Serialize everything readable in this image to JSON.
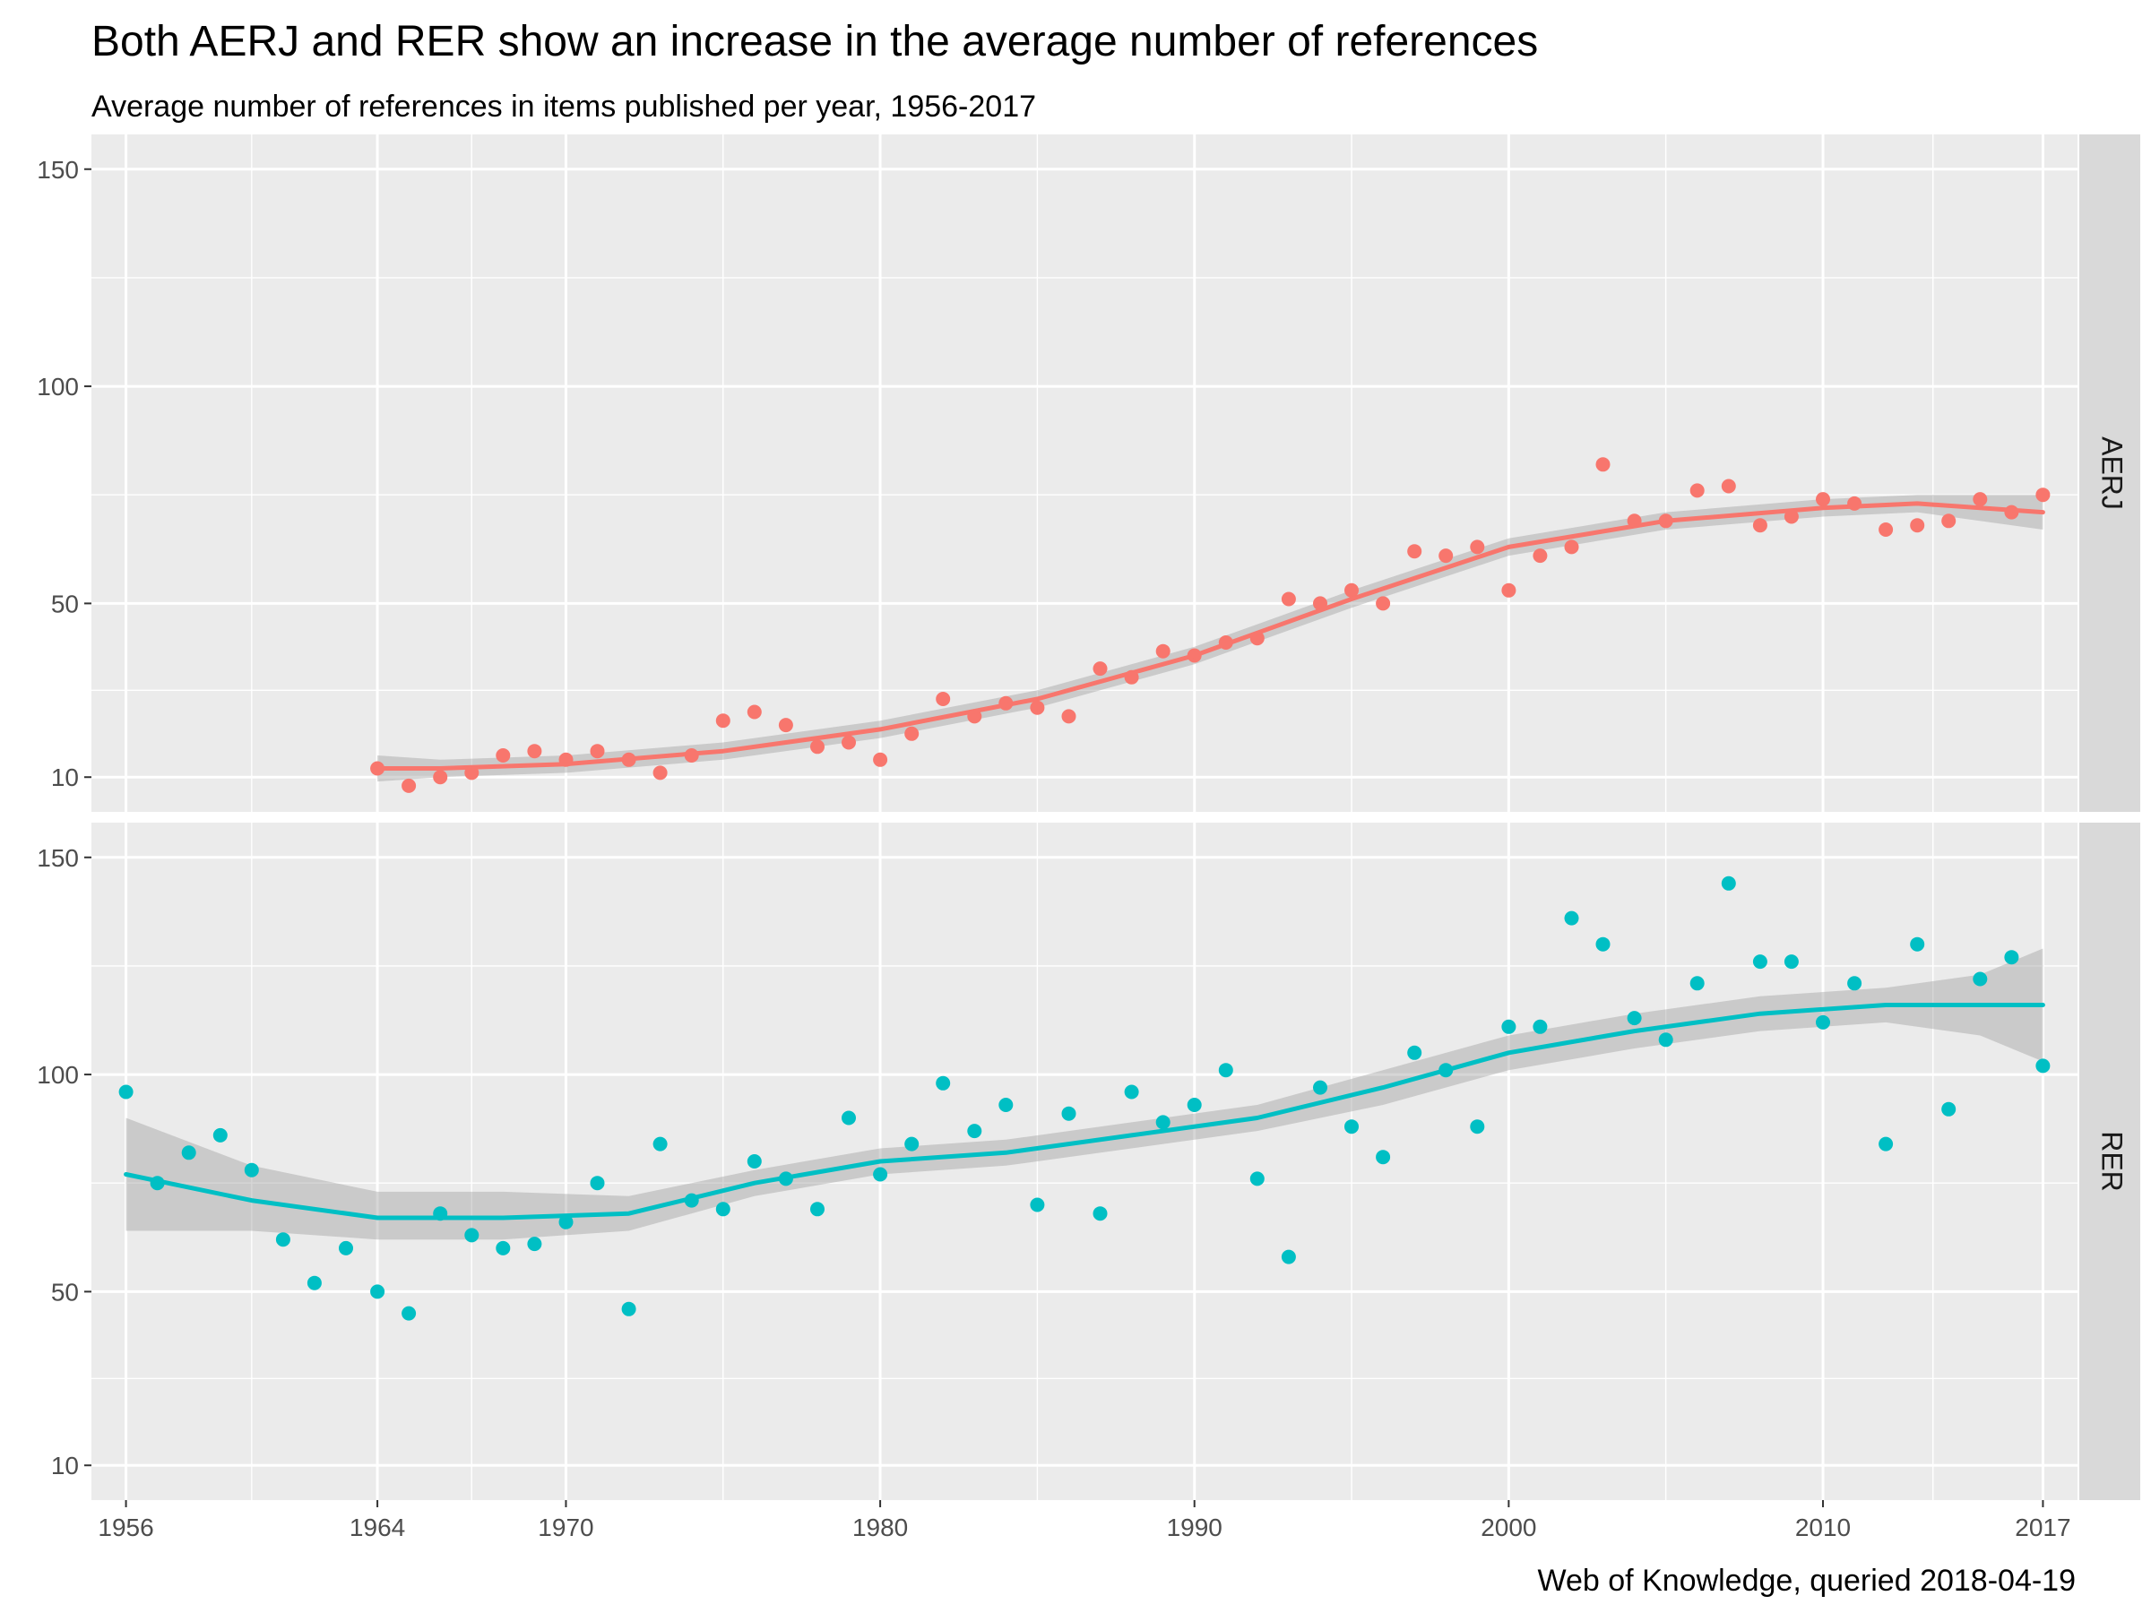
{
  "chart_data": {
    "type": "scatter",
    "title": "Both AERJ and RER show an increase in the average number of references",
    "subtitle": "Average number of references in items published per year, 1956-2017",
    "caption": "Web of Knowledge, queried 2018-04-19",
    "xlabel": "",
    "ylabel": "",
    "x_ticks": [
      1956,
      1964,
      1970,
      1980,
      1990,
      2000,
      2010,
      2017
    ],
    "y_ticks": [
      10,
      50,
      100,
      150
    ],
    "xlim": [
      1954.9,
      2018.1
    ],
    "ylim": [
      2,
      158
    ],
    "grid": true,
    "legend": "none",
    "facets": [
      {
        "label": "AERJ",
        "color": "#F8766D",
        "points": [
          [
            1964,
            12
          ],
          [
            1965,
            8
          ],
          [
            1966,
            10
          ],
          [
            1967,
            11
          ],
          [
            1968,
            15
          ],
          [
            1969,
            16
          ],
          [
            1970,
            14
          ],
          [
            1971,
            16
          ],
          [
            1972,
            14
          ],
          [
            1973,
            11
          ],
          [
            1974,
            15
          ],
          [
            1975,
            23
          ],
          [
            1976,
            25
          ],
          [
            1977,
            22
          ],
          [
            1978,
            17
          ],
          [
            1979,
            18
          ],
          [
            1980,
            14
          ],
          [
            1981,
            20
          ],
          [
            1982,
            28
          ],
          [
            1983,
            24
          ],
          [
            1984,
            27
          ],
          [
            1985,
            26
          ],
          [
            1986,
            24
          ],
          [
            1987,
            35
          ],
          [
            1988,
            33
          ],
          [
            1989,
            39
          ],
          [
            1990,
            38
          ],
          [
            1991,
            41
          ],
          [
            1992,
            42
          ],
          [
            1993,
            51
          ],
          [
            1994,
            50
          ],
          [
            1995,
            53
          ],
          [
            1996,
            50
          ],
          [
            1997,
            62
          ],
          [
            1998,
            61
          ],
          [
            1999,
            63
          ],
          [
            2000,
            53
          ],
          [
            2001,
            61
          ],
          [
            2002,
            63
          ],
          [
            2003,
            82
          ],
          [
            2004,
            69
          ],
          [
            2005,
            69
          ],
          [
            2006,
            76
          ],
          [
            2007,
            77
          ],
          [
            2008,
            68
          ],
          [
            2009,
            70
          ],
          [
            2010,
            74
          ],
          [
            2011,
            73
          ],
          [
            2012,
            67
          ],
          [
            2013,
            68
          ],
          [
            2014,
            69
          ],
          [
            2015,
            74
          ],
          [
            2016,
            71
          ],
          [
            2017,
            75
          ]
        ],
        "smooth": [
          [
            1964,
            12
          ],
          [
            1966,
            12
          ],
          [
            1970,
            13
          ],
          [
            1975,
            16
          ],
          [
            1980,
            21
          ],
          [
            1985,
            28
          ],
          [
            1990,
            38
          ],
          [
            1995,
            51
          ],
          [
            2000,
            63
          ],
          [
            2005,
            69
          ],
          [
            2010,
            72
          ],
          [
            2013,
            73
          ],
          [
            2017,
            71
          ]
        ],
        "band_lower": [
          [
            1964,
            9
          ],
          [
            1966,
            10
          ],
          [
            1970,
            11
          ],
          [
            1975,
            14
          ],
          [
            1980,
            19
          ],
          [
            1985,
            26
          ],
          [
            1990,
            36
          ],
          [
            1995,
            49
          ],
          [
            2000,
            61
          ],
          [
            2005,
            67
          ],
          [
            2010,
            70
          ],
          [
            2013,
            71
          ],
          [
            2017,
            67
          ]
        ],
        "band_upper": [
          [
            1964,
            15
          ],
          [
            1966,
            14
          ],
          [
            1970,
            15
          ],
          [
            1975,
            18
          ],
          [
            1980,
            23
          ],
          [
            1985,
            30
          ],
          [
            1990,
            40
          ],
          [
            1995,
            53
          ],
          [
            2000,
            65
          ],
          [
            2005,
            71
          ],
          [
            2010,
            74
          ],
          [
            2013,
            75
          ],
          [
            2017,
            75
          ]
        ]
      },
      {
        "label": "RER",
        "color": "#00BFC4",
        "points": [
          [
            1956,
            96
          ],
          [
            1957,
            75
          ],
          [
            1958,
            82
          ],
          [
            1959,
            86
          ],
          [
            1960,
            78
          ],
          [
            1961,
            62
          ],
          [
            1962,
            52
          ],
          [
            1963,
            60
          ],
          [
            1964,
            50
          ],
          [
            1965,
            45
          ],
          [
            1966,
            68
          ],
          [
            1967,
            63
          ],
          [
            1968,
            60
          ],
          [
            1969,
            61
          ],
          [
            1970,
            66
          ],
          [
            1971,
            75
          ],
          [
            1972,
            46
          ],
          [
            1973,
            84
          ],
          [
            1974,
            71
          ],
          [
            1975,
            69
          ],
          [
            1976,
            80
          ],
          [
            1977,
            76
          ],
          [
            1978,
            69
          ],
          [
            1979,
            90
          ],
          [
            1980,
            77
          ],
          [
            1981,
            84
          ],
          [
            1982,
            98
          ],
          [
            1983,
            87
          ],
          [
            1984,
            93
          ],
          [
            1985,
            70
          ],
          [
            1986,
            91
          ],
          [
            1987,
            68
          ],
          [
            1988,
            96
          ],
          [
            1989,
            89
          ],
          [
            1990,
            93
          ],
          [
            1991,
            101
          ],
          [
            1992,
            76
          ],
          [
            1993,
            58
          ],
          [
            1994,
            97
          ],
          [
            1995,
            88
          ],
          [
            1996,
            81
          ],
          [
            1997,
            105
          ],
          [
            1998,
            101
          ],
          [
            1999,
            88
          ],
          [
            2000,
            111
          ],
          [
            2001,
            111
          ],
          [
            2002,
            136
          ],
          [
            2003,
            130
          ],
          [
            2004,
            113
          ],
          [
            2005,
            108
          ],
          [
            2006,
            121
          ],
          [
            2007,
            144
          ],
          [
            2008,
            126
          ],
          [
            2009,
            126
          ],
          [
            2010,
            112
          ],
          [
            2011,
            121
          ],
          [
            2012,
            84
          ],
          [
            2013,
            130
          ],
          [
            2014,
            92
          ],
          [
            2015,
            122
          ],
          [
            2016,
            127
          ],
          [
            2017,
            102
          ]
        ],
        "smooth": [
          [
            1956,
            77
          ],
          [
            1960,
            71
          ],
          [
            1964,
            67
          ],
          [
            1968,
            67
          ],
          [
            1972,
            68
          ],
          [
            1976,
            75
          ],
          [
            1980,
            80
          ],
          [
            1984,
            82
          ],
          [
            1988,
            86
          ],
          [
            1992,
            90
          ],
          [
            1996,
            97
          ],
          [
            2000,
            105
          ],
          [
            2004,
            110
          ],
          [
            2008,
            114
          ],
          [
            2012,
            116
          ],
          [
            2015,
            116
          ],
          [
            2017,
            116
          ]
        ],
        "band_lower": [
          [
            1956,
            64
          ],
          [
            1960,
            64
          ],
          [
            1964,
            62
          ],
          [
            1968,
            62
          ],
          [
            1972,
            64
          ],
          [
            1976,
            72
          ],
          [
            1980,
            77
          ],
          [
            1984,
            79
          ],
          [
            1988,
            83
          ],
          [
            1992,
            87
          ],
          [
            1996,
            93
          ],
          [
            2000,
            101
          ],
          [
            2004,
            106
          ],
          [
            2008,
            110
          ],
          [
            2012,
            112
          ],
          [
            2015,
            109
          ],
          [
            2017,
            103
          ]
        ],
        "band_upper": [
          [
            1956,
            90
          ],
          [
            1960,
            79
          ],
          [
            1964,
            73
          ],
          [
            1968,
            73
          ],
          [
            1972,
            72
          ],
          [
            1976,
            78
          ],
          [
            1980,
            83
          ],
          [
            1984,
            85
          ],
          [
            1988,
            89
          ],
          [
            1992,
            93
          ],
          [
            1996,
            101
          ],
          [
            2000,
            109
          ],
          [
            2004,
            114
          ],
          [
            2008,
            118
          ],
          [
            2012,
            120
          ],
          [
            2015,
            123
          ],
          [
            2017,
            129
          ]
        ]
      }
    ]
  }
}
